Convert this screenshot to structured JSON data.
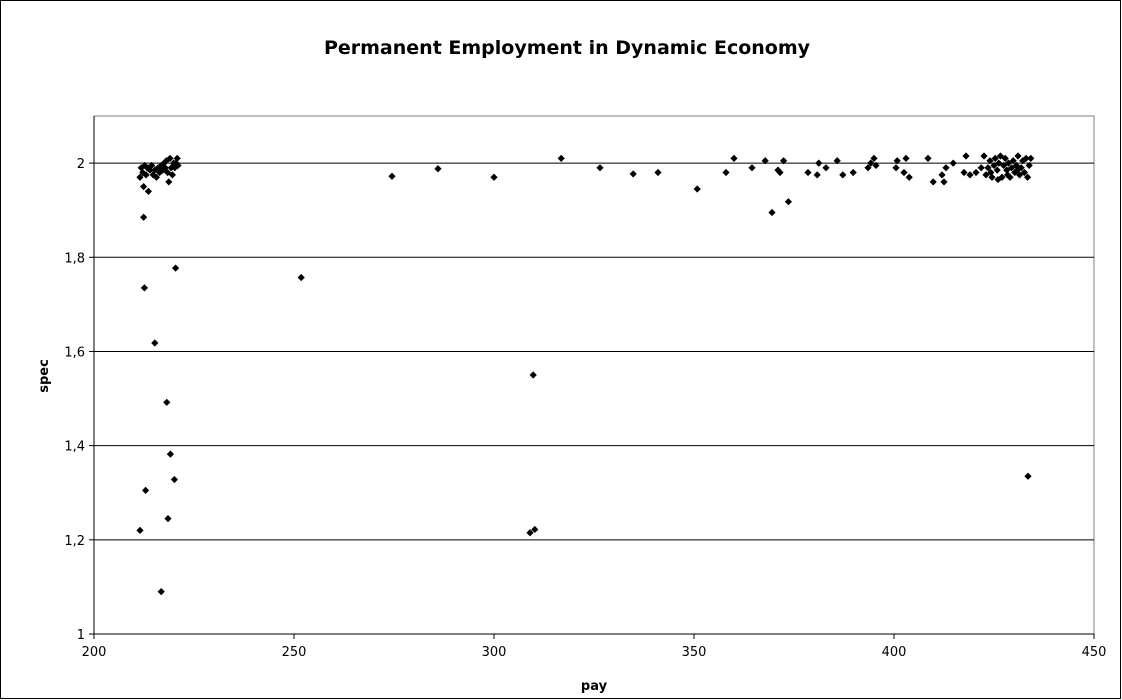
{
  "chart_data": {
    "type": "scatter",
    "title": "Permanent Employment in Dynamic Economy",
    "xlabel": "pay",
    "ylabel": "spec",
    "xlim": [
      200,
      450
    ],
    "ylim": [
      1,
      2.1
    ],
    "x_ticks": [
      "200",
      "250",
      "300",
      "350",
      "400",
      "450"
    ],
    "y_ticks": [
      "1",
      "1,2",
      "1,4",
      "1,6",
      "1,8",
      "2"
    ],
    "grid": "horizontal",
    "legend": "none",
    "marker_color": "#000000",
    "points": [
      [
        211.5,
        1.97
      ],
      [
        211.8,
        1.99
      ],
      [
        212.2,
        1.98
      ],
      [
        212.4,
        1.95
      ],
      [
        212.7,
        1.995
      ],
      [
        213.0,
        1.975
      ],
      [
        213.3,
        1.99
      ],
      [
        213.6,
        1.94
      ],
      [
        214.0,
        1.985
      ],
      [
        214.4,
        1.995
      ],
      [
        214.8,
        1.975
      ],
      [
        215.2,
        1.985
      ],
      [
        215.6,
        1.97
      ],
      [
        216.0,
        1.99
      ],
      [
        216.4,
        1.98
      ],
      [
        216.8,
        1.995
      ],
      [
        217.2,
        1.985
      ],
      [
        217.5,
        2.0
      ],
      [
        217.8,
        1.99
      ],
      [
        218.1,
        2.005
      ],
      [
        218.4,
        1.98
      ],
      [
        218.7,
        1.96
      ],
      [
        219.0,
        2.01
      ],
      [
        219.3,
        1.99
      ],
      [
        219.6,
        1.975
      ],
      [
        219.9,
        2.0
      ],
      [
        220.2,
        1.99
      ],
      [
        220.5,
        2.0
      ],
      [
        220.8,
        2.01
      ],
      [
        221.0,
        1.995
      ],
      [
        211.5,
        1.22
      ],
      [
        212.4,
        1.885
      ],
      [
        212.6,
        1.735
      ],
      [
        212.9,
        1.305
      ],
      [
        215.2,
        1.618
      ],
      [
        216.8,
        1.09
      ],
      [
        218.2,
        1.492
      ],
      [
        218.5,
        1.245
      ],
      [
        219.1,
        1.382
      ],
      [
        220.1,
        1.328
      ],
      [
        220.4,
        1.777
      ],
      [
        251.8,
        1.757
      ],
      [
        274.5,
        1.972
      ],
      [
        286.0,
        1.988
      ],
      [
        300.0,
        1.97
      ],
      [
        309.0,
        1.215
      ],
      [
        310.2,
        1.222
      ],
      [
        309.8,
        1.55
      ],
      [
        316.8,
        2.01
      ],
      [
        326.5,
        1.99
      ],
      [
        334.8,
        1.977
      ],
      [
        341.0,
        1.98
      ],
      [
        350.8,
        1.945
      ],
      [
        358.0,
        1.98
      ],
      [
        360.0,
        2.01
      ],
      [
        364.5,
        1.99
      ],
      [
        367.8,
        2.005
      ],
      [
        369.5,
        1.895
      ],
      [
        371.0,
        1.985
      ],
      [
        371.5,
        1.98
      ],
      [
        372.4,
        2.005
      ],
      [
        373.6,
        1.918
      ],
      [
        378.5,
        1.98
      ],
      [
        380.8,
        1.975
      ],
      [
        381.2,
        2.0
      ],
      [
        383.0,
        1.99
      ],
      [
        385.8,
        2.005
      ],
      [
        387.2,
        1.975
      ],
      [
        389.8,
        1.98
      ],
      [
        393.5,
        1.99
      ],
      [
        394.2,
        2.0
      ],
      [
        395.0,
        2.01
      ],
      [
        395.5,
        1.995
      ],
      [
        400.5,
        1.99
      ],
      [
        400.8,
        2.005
      ],
      [
        402.5,
        1.98
      ],
      [
        403.0,
        2.01
      ],
      [
        403.8,
        1.97
      ],
      [
        408.5,
        2.01
      ],
      [
        409.8,
        1.96
      ],
      [
        412.0,
        1.975
      ],
      [
        412.5,
        1.96
      ],
      [
        413.0,
        1.99
      ],
      [
        414.8,
        2.0
      ],
      [
        417.5,
        1.98
      ],
      [
        418.0,
        2.015
      ],
      [
        419.0,
        1.975
      ],
      [
        420.5,
        1.98
      ],
      [
        421.8,
        1.99
      ],
      [
        422.5,
        2.015
      ],
      [
        423.0,
        1.975
      ],
      [
        423.5,
        1.99
      ],
      [
        424.0,
        2.005
      ],
      [
        424.5,
        1.97
      ],
      [
        425.0,
        1.995
      ],
      [
        425.3,
        2.01
      ],
      [
        425.8,
        1.985
      ],
      [
        426.2,
        2.0
      ],
      [
        426.6,
        2.015
      ],
      [
        427.0,
        1.97
      ],
      [
        427.4,
        1.995
      ],
      [
        427.8,
        2.01
      ],
      [
        428.2,
        1.985
      ],
      [
        428.6,
        2.0
      ],
      [
        429.0,
        1.97
      ],
      [
        429.4,
        1.99
      ],
      [
        429.8,
        2.005
      ],
      [
        430.2,
        1.98
      ],
      [
        430.6,
        1.995
      ],
      [
        431.0,
        2.015
      ],
      [
        431.4,
        1.975
      ],
      [
        431.8,
        1.99
      ],
      [
        432.2,
        2.005
      ],
      [
        432.6,
        1.98
      ],
      [
        433.0,
        2.01
      ],
      [
        433.4,
        1.97
      ],
      [
        433.8,
        1.995
      ],
      [
        434.2,
        2.01
      ],
      [
        433.5,
        1.335
      ],
      [
        424.2,
        1.98
      ],
      [
        426.0,
        1.965
      ],
      [
        428.4,
        1.975
      ],
      [
        430.8,
        1.985
      ]
    ]
  }
}
